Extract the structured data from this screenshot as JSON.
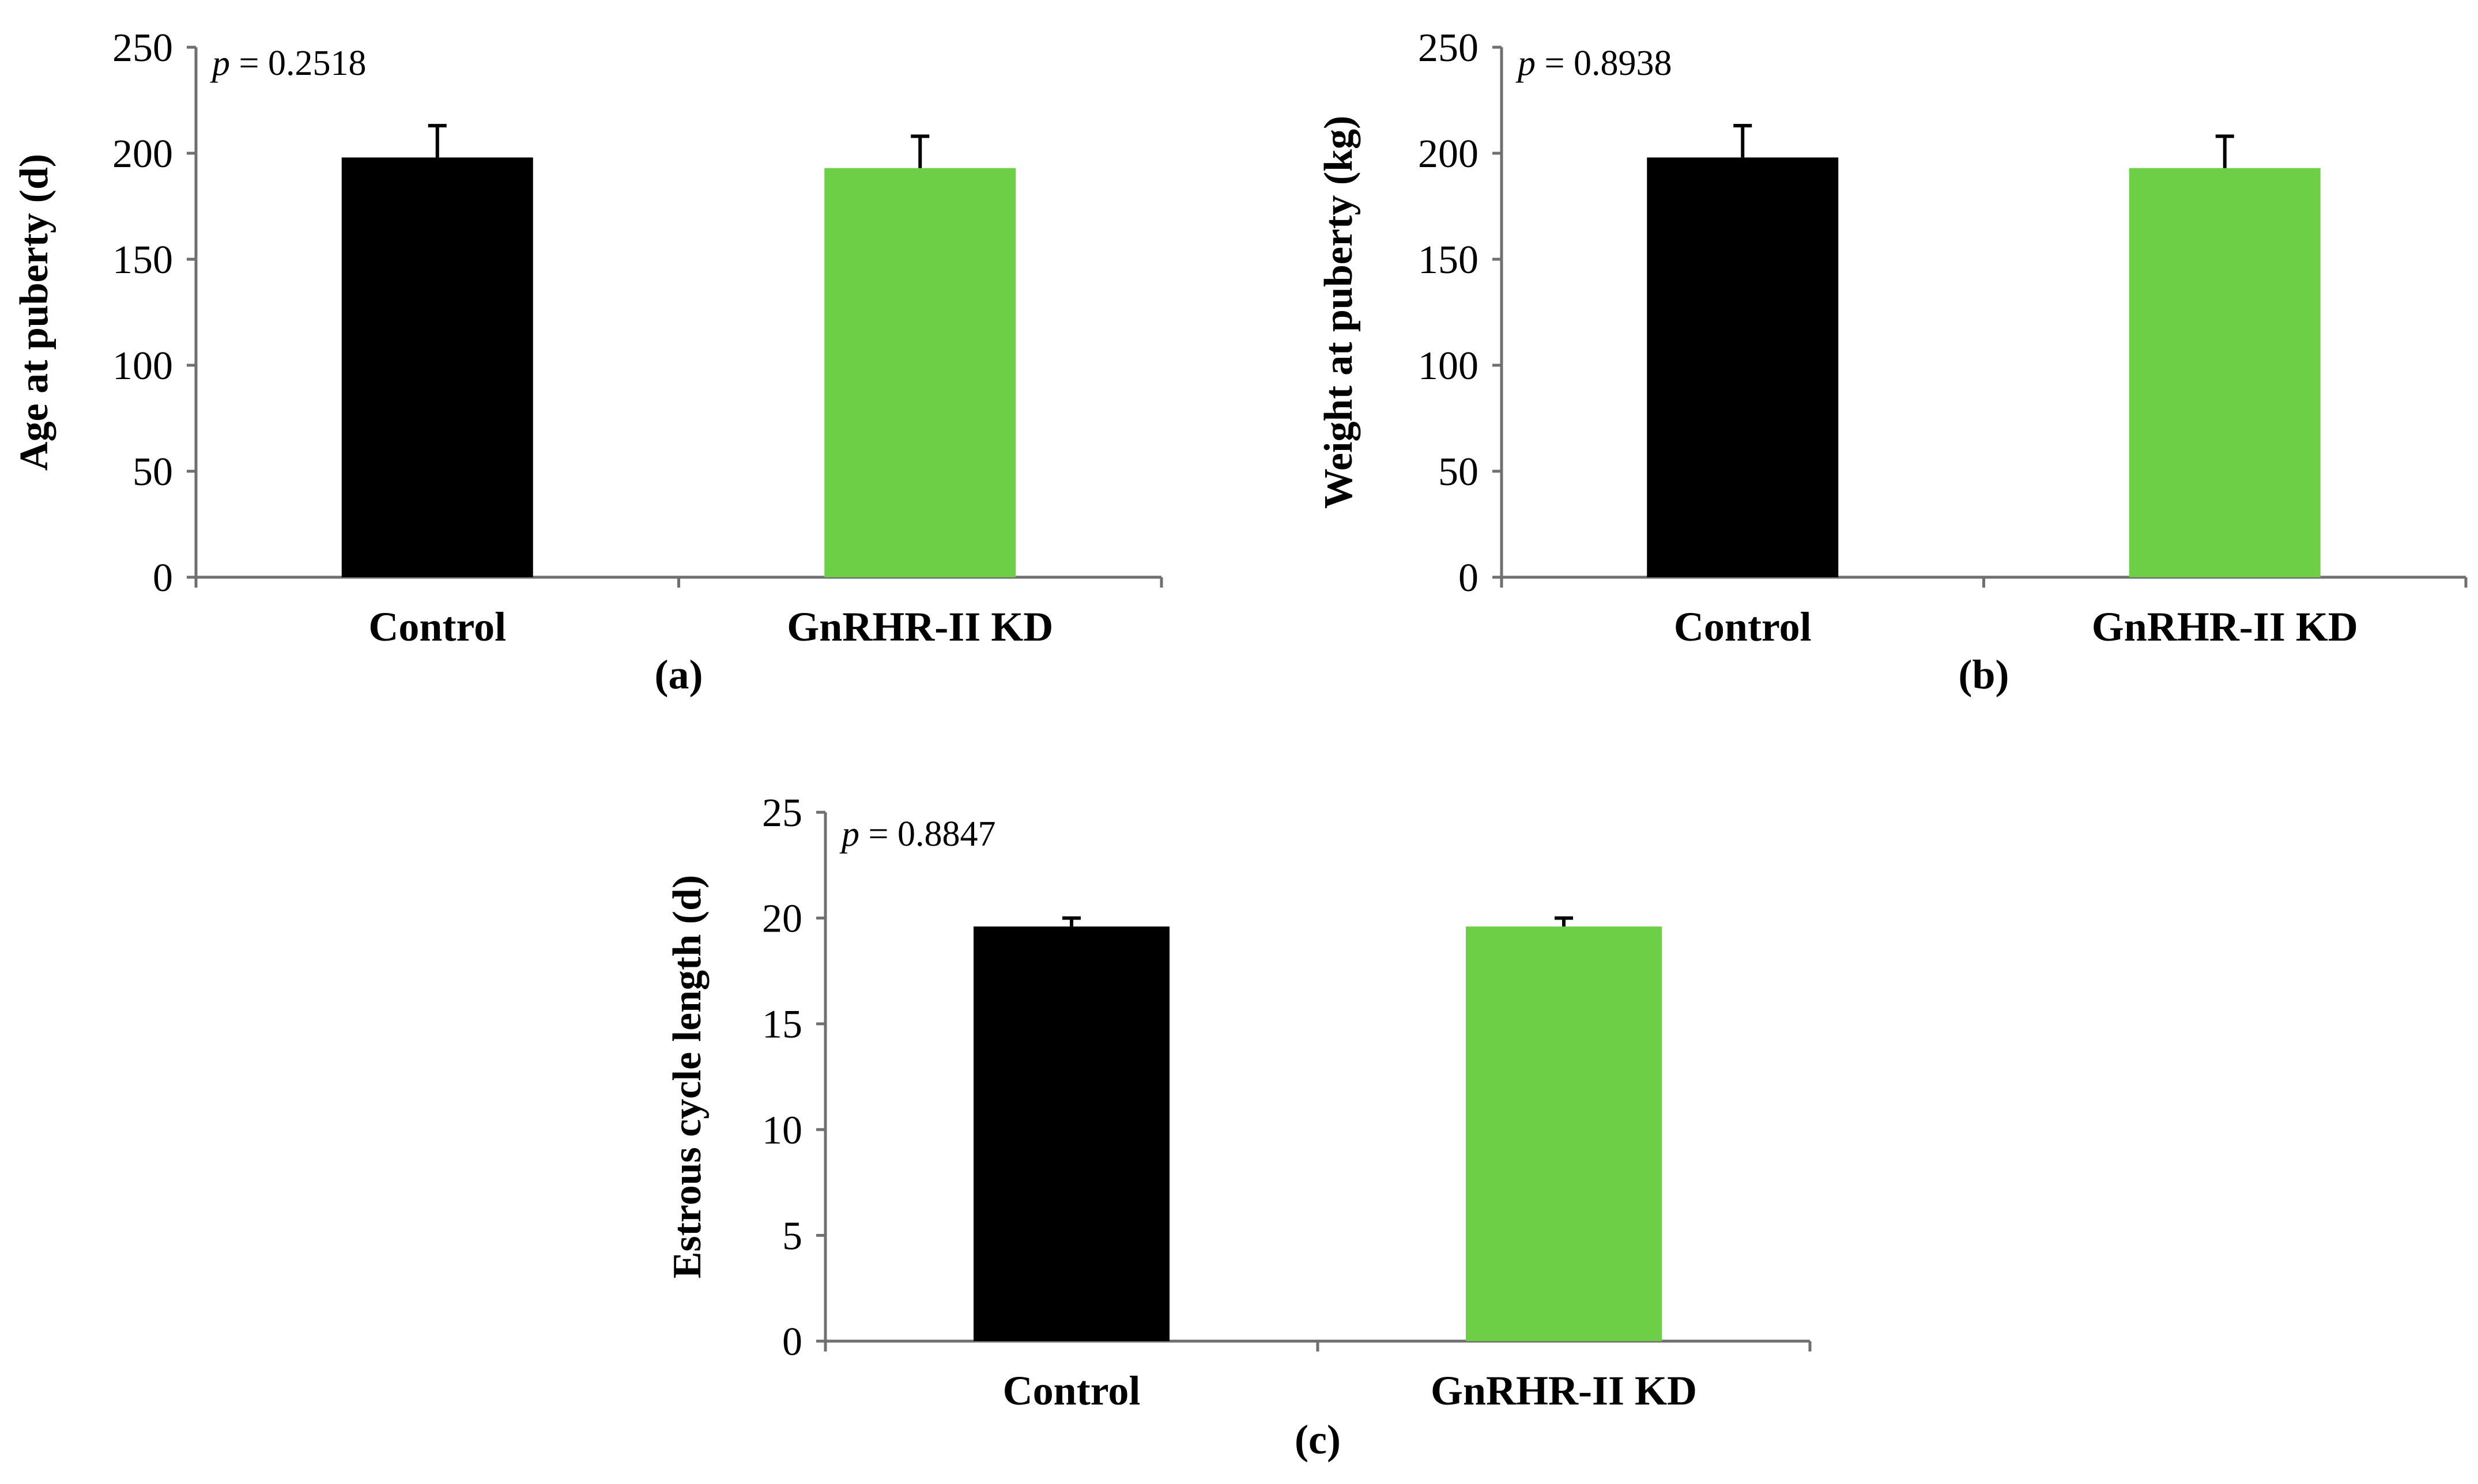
{
  "chart_data": [
    {
      "type": "bar",
      "panel_label": "(a)",
      "annotation": {
        "italic": "p",
        "text": " = 0.2518"
      },
      "categories": [
        "Control",
        "GnRHR-II KD"
      ],
      "values": [
        198,
        193
      ],
      "errors": [
        15,
        15
      ],
      "colors": [
        "#000000",
        "#6dcf45"
      ],
      "xlabel": "",
      "ylabel": "Age at puberty (d)",
      "ylim": [
        0,
        250
      ],
      "yticks": [
        0,
        50,
        100,
        150,
        200,
        250
      ],
      "grid": false
    },
    {
      "type": "bar",
      "panel_label": "(b)",
      "annotation": {
        "italic": "p",
        "text": " = 0.8938"
      },
      "categories": [
        "Control",
        "GnRHR-II KD"
      ],
      "values": [
        198,
        193
      ],
      "errors": [
        15,
        15
      ],
      "colors": [
        "#000000",
        "#6dcf45"
      ],
      "xlabel": "",
      "ylabel": "Weight at puberty (kg)",
      "ylim": [
        0,
        250
      ],
      "yticks": [
        0,
        50,
        100,
        150,
        200,
        250
      ],
      "grid": false
    },
    {
      "type": "bar",
      "panel_label": "(c)",
      "annotation": {
        "italic": "p",
        "text": " = 0.8847"
      },
      "categories": [
        "Control",
        "GnRHR-II KD"
      ],
      "values": [
        19.6,
        19.6
      ],
      "errors": [
        0.4,
        0.4
      ],
      "colors": [
        "#000000",
        "#6dcf45"
      ],
      "xlabel": "",
      "ylabel": "Estrous cycle length (d)",
      "ylim": [
        0,
        25
      ],
      "yticks": [
        0,
        5,
        10,
        15,
        20,
        25
      ],
      "grid": false
    }
  ]
}
